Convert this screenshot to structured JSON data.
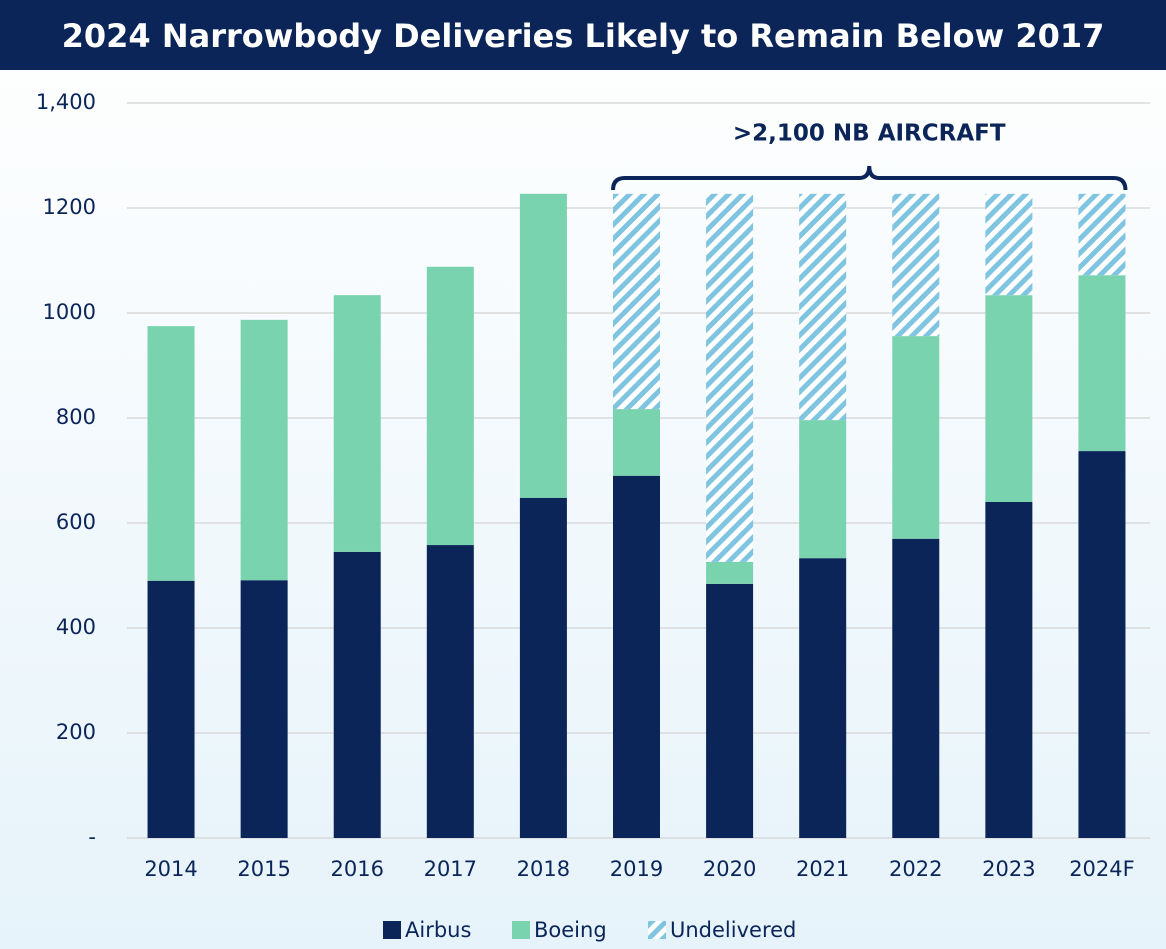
{
  "chart_data": {
    "type": "stacked_bar",
    "title": "2024 Narrowbody Deliveries Likely to Remain Below 2017",
    "annotation": ">2,100 NB AIRCRAFT",
    "categories": [
      "2014",
      "2015",
      "2016",
      "2017",
      "2018",
      "2019",
      "2020",
      "2021",
      "2022",
      "2023",
      "2024F"
    ],
    "series": [
      {
        "name": "Airbus",
        "color": "#0b2559",
        "values": [
          490,
          491,
          545,
          558,
          648,
          690,
          484,
          533,
          570,
          640,
          737
        ]
      },
      {
        "name": "Boeing",
        "color": "#79d3ae",
        "values": [
          485,
          496,
          489,
          530,
          579,
          127,
          42,
          263,
          386,
          394,
          335
        ]
      },
      {
        "name": "Undelivered",
        "color": "#7fc4e0",
        "pattern": "hatch",
        "values": [
          null,
          null,
          null,
          null,
          null,
          410,
          701,
          431,
          271,
          193,
          155
        ]
      }
    ],
    "ylim": [
      0,
      1400
    ],
    "yticks": [
      {
        "value": 0,
        "label": "-"
      },
      200,
      400,
      600,
      800,
      1000,
      1200,
      {
        "value": 1400,
        "label": "1,400"
      }
    ],
    "grid": true,
    "legend": "bottom"
  }
}
